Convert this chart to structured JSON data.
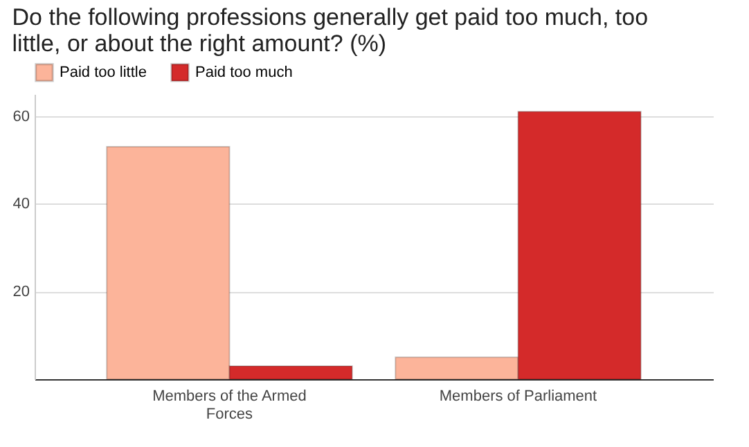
{
  "chart_data": {
    "type": "bar",
    "title": "Do the following professions generally get paid too much, too little, or about the right amount? (%)",
    "categories": [
      "Members of the Armed Forces",
      "Members of Parliament"
    ],
    "series": [
      {
        "name": "Paid too little",
        "color": "#fcb49a",
        "values": [
          53,
          5
        ]
      },
      {
        "name": "Paid too much",
        "color": "#d42a2a",
        "values": [
          3,
          61
        ]
      }
    ],
    "ylim": [
      0,
      65
    ],
    "yticks": [
      20,
      40,
      60
    ],
    "grid": "y",
    "legend": "top left"
  }
}
